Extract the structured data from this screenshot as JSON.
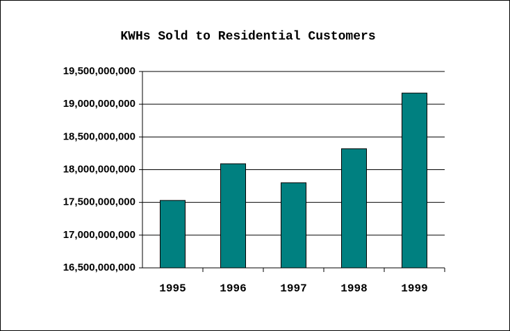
{
  "chart_data": {
    "type": "bar",
    "title": "KWHs Sold to Residential Customers",
    "categories": [
      "1995",
      "1996",
      "1997",
      "1998",
      "1999"
    ],
    "values": [
      17530000000,
      18090000000,
      17800000000,
      18320000000,
      19170000000
    ],
    "color": "#008080",
    "ylim": [
      16500000000,
      19500000000
    ],
    "yticks": [
      {
        "value": 16500000000,
        "label": "16,500,000,000"
      },
      {
        "value": 17000000000,
        "label": "17,000,000,000"
      },
      {
        "value": 17500000000,
        "label": "17,500,000,000"
      },
      {
        "value": 18000000000,
        "label": "18,000,000,000"
      },
      {
        "value": 18500000000,
        "label": "18,500,000,000"
      },
      {
        "value": 19000000000,
        "label": "19,000,000,000"
      },
      {
        "value": 19500000000,
        "label": "19,500,000,000"
      }
    ],
    "grid": true
  }
}
